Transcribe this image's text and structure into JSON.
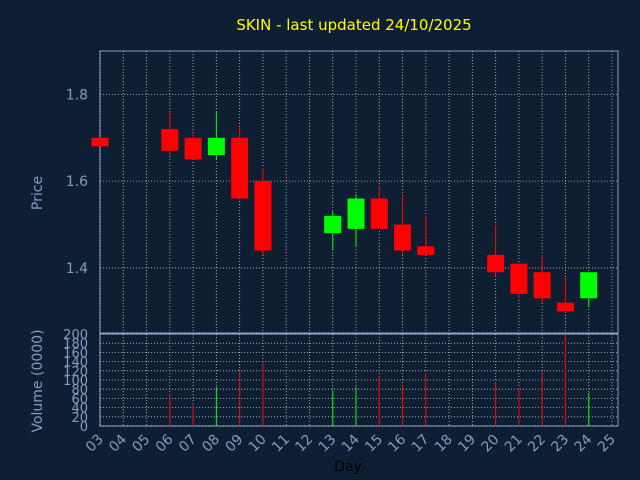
{
  "chart_data": {
    "type": "candlestick",
    "title": "SKIN - last updated 24/10/2025",
    "xlabel": "Day",
    "price_ylabel": "Price",
    "volume_ylabel": "Volume (0000)",
    "x_ticks": [
      "03",
      "04",
      "05",
      "06",
      "07",
      "08",
      "09",
      "10",
      "11",
      "12",
      "13",
      "14",
      "15",
      "16",
      "17",
      "18",
      "19",
      "20",
      "21",
      "22",
      "23",
      "24",
      "25"
    ],
    "price_ticks": [
      "1.4",
      "1.6",
      "1.8"
    ],
    "price_ylim": [
      1.25,
      1.9
    ],
    "volume_ticks": [
      "0",
      "20",
      "40",
      "60",
      "80",
      "100",
      "120",
      "140",
      "160",
      "180",
      "200"
    ],
    "volume_ylim": [
      0,
      200
    ],
    "up_color": "#00ff00",
    "down_color": "#ff0000",
    "grid": true,
    "candles": [
      {
        "day": "03",
        "open": 1.7,
        "high": 1.7,
        "low": 1.68,
        "close": 1.68,
        "volume": 0
      },
      {
        "day": "06",
        "open": 1.72,
        "high": 1.76,
        "low": 1.66,
        "close": 1.67,
        "volume": 70
      },
      {
        "day": "07",
        "open": 1.7,
        "high": 1.71,
        "low": 1.65,
        "close": 1.65,
        "volume": 45
      },
      {
        "day": "08",
        "open": 1.66,
        "high": 1.76,
        "low": 1.65,
        "close": 1.7,
        "volume": 85
      },
      {
        "day": "09",
        "open": 1.7,
        "high": 1.73,
        "low": 1.56,
        "close": 1.56,
        "volume": 118
      },
      {
        "day": "10",
        "open": 1.6,
        "high": 1.63,
        "low": 1.43,
        "close": 1.44,
        "volume": 140
      },
      {
        "day": "13",
        "open": 1.48,
        "high": 1.53,
        "low": 1.44,
        "close": 1.52,
        "volume": 78
      },
      {
        "day": "14",
        "open": 1.49,
        "high": 1.57,
        "low": 1.45,
        "close": 1.56,
        "volume": 85
      },
      {
        "day": "15",
        "open": 1.56,
        "high": 1.59,
        "low": 1.49,
        "close": 1.49,
        "volume": 108
      },
      {
        "day": "16",
        "open": 1.5,
        "high": 1.57,
        "low": 1.43,
        "close": 1.44,
        "volume": 88
      },
      {
        "day": "17",
        "open": 1.45,
        "high": 1.52,
        "low": 1.43,
        "close": 1.43,
        "volume": 115
      },
      {
        "day": "20",
        "open": 1.43,
        "high": 1.5,
        "low": 1.38,
        "close": 1.39,
        "volume": 95
      },
      {
        "day": "21",
        "open": 1.41,
        "high": 1.41,
        "low": 1.33,
        "close": 1.34,
        "volume": 82
      },
      {
        "day": "22",
        "open": 1.39,
        "high": 1.43,
        "low": 1.32,
        "close": 1.33,
        "volume": 118
      },
      {
        "day": "23",
        "open": 1.32,
        "high": 1.38,
        "low": 1.3,
        "close": 1.3,
        "volume": 200
      },
      {
        "day": "24",
        "open": 1.33,
        "high": 1.39,
        "low": 1.31,
        "close": 1.39,
        "volume": 72
      }
    ]
  }
}
